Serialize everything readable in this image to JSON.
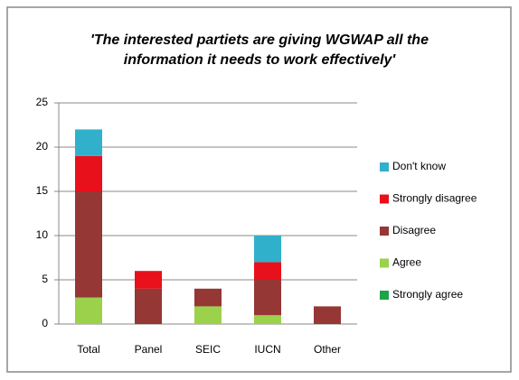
{
  "chart_data": {
    "type": "stacked_bar",
    "title": "'The interested partiets are giving WGWAP all the information it needs to work effectively'",
    "categories": [
      "Total",
      "Panel",
      "SEIC",
      "IUCN",
      "Other"
    ],
    "series": [
      {
        "name": "Strongly agree",
        "color": "#1fa34a",
        "values": [
          0,
          0,
          0,
          0,
          0
        ]
      },
      {
        "name": "Agree",
        "color": "#9bd14b",
        "values": [
          3,
          0,
          2,
          1,
          0
        ]
      },
      {
        "name": "Disagree",
        "color": "#953735",
        "values": [
          12,
          4,
          2,
          4,
          2
        ]
      },
      {
        "name": "Strongly disagree",
        "color": "#e8101a",
        "values": [
          4,
          2,
          0,
          2,
          0
        ]
      },
      {
        "name": "Don't know",
        "color": "#31b0cc",
        "values": [
          3,
          0,
          0,
          3,
          0
        ]
      }
    ],
    "ylim": [
      0,
      25
    ],
    "yticks": [
      0,
      5,
      10,
      15,
      20,
      25
    ],
    "grid": true,
    "legend": "right"
  }
}
